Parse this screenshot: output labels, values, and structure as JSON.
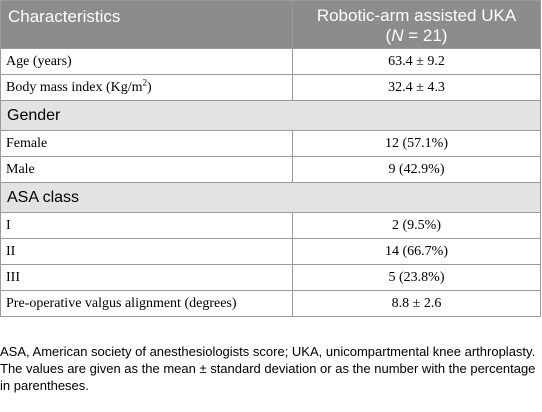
{
  "table": {
    "header": {
      "col1": "Characteristics",
      "col2_line1": "Robotic-arm assisted UKA",
      "col2_n_open": "(",
      "col2_n_italic": "N",
      "col2_n_rest": " = 21)"
    },
    "rows": [
      {
        "label": "Age (years)",
        "value": "63.4 ± 9.2"
      },
      {
        "label_main": "Body mass index (Kg/m",
        "label_sup": "2",
        "label_end": ")",
        "value": "32.4 ± 4.3"
      }
    ],
    "sections": [
      {
        "title": "Gender",
        "rows": [
          {
            "label": "Female",
            "value": "12 (57.1%)"
          },
          {
            "label": "Male",
            "value": "9 (42.9%)"
          }
        ]
      },
      {
        "title": "ASA class",
        "rows": [
          {
            "label": "I",
            "value": "2 (9.5%)"
          },
          {
            "label": "II",
            "value": "14 (66.7%)"
          },
          {
            "label": "III",
            "value": "5 (23.8%)"
          },
          {
            "label": "Pre-operative valgus alignment (degrees)",
            "value": "8.8 ± 2.6"
          }
        ]
      }
    ]
  },
  "footnotes": {
    "abbreviations": "ASA, American society of anesthesiologists score; UKA, unicompartmental knee arthroplasty.",
    "values_note": "The values are given as the mean ± standard deviation or as the number with the percentage in parentheses."
  }
}
